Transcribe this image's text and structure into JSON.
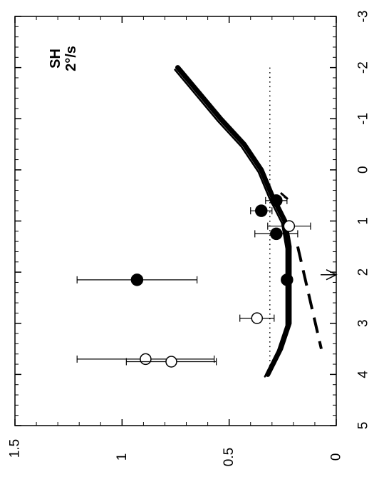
{
  "chart_data": {
    "type": "scatter",
    "rotated": "90deg-counterclockwise",
    "title": "",
    "xlabel": "",
    "ylabel": "",
    "xlim": [
      -3,
      5
    ],
    "ylim": [
      0,
      1.5
    ],
    "x_ticks": [
      "-3",
      "-2",
      "-1",
      "0",
      "1",
      "2",
      "3",
      "4",
      "5"
    ],
    "y_ticks": [
      "0",
      "0.5",
      "1",
      "1.5"
    ],
    "grid": false,
    "annotations": [
      "SH",
      "2°/s"
    ],
    "reference_line": {
      "style": "dotted",
      "y": 0.31,
      "x_range": [
        -2,
        4
      ]
    },
    "series": [
      {
        "style": "filled-circle",
        "points": [
          {
            "x": 0.6,
            "y": 0.28,
            "yerr": 0.05
          },
          {
            "x": 0.8,
            "y": 0.35,
            "yerr": 0.05
          },
          {
            "x": 1.25,
            "y": 0.28,
            "yerr": 0.1
          },
          {
            "x": 2.15,
            "y": 0.23
          },
          {
            "x": 2.15,
            "y": 0.93,
            "yerr": 0.28
          }
        ]
      },
      {
        "style": "open-circle",
        "points": [
          {
            "x": 1.1,
            "y": 0.22,
            "yerr": 0.1
          },
          {
            "x": 2.9,
            "y": 0.37,
            "yerr": 0.08
          },
          {
            "x": 3.7,
            "y": 0.89,
            "yerr": 0.32
          },
          {
            "x": 3.75,
            "y": 0.77,
            "yerr": 0.21
          }
        ]
      },
      {
        "style": "thick-line",
        "x": [
          -2,
          -1.5,
          -1,
          -0.5,
          0,
          0.5,
          1,
          1.5,
          2,
          2.5,
          3,
          3.5,
          4
        ],
        "y": [
          0.74,
          0.64,
          0.54,
          0.43,
          0.35,
          0.3,
          0.24,
          0.22,
          0.22,
          0.22,
          0.22,
          0.26,
          0.32
        ]
      },
      {
        "style": "dashed-line",
        "x": [
          1.5,
          3.5
        ],
        "y": [
          0.18,
          0.07
        ]
      }
    ],
    "arrow_marker": {
      "x": 2.05,
      "y": 0
    }
  }
}
